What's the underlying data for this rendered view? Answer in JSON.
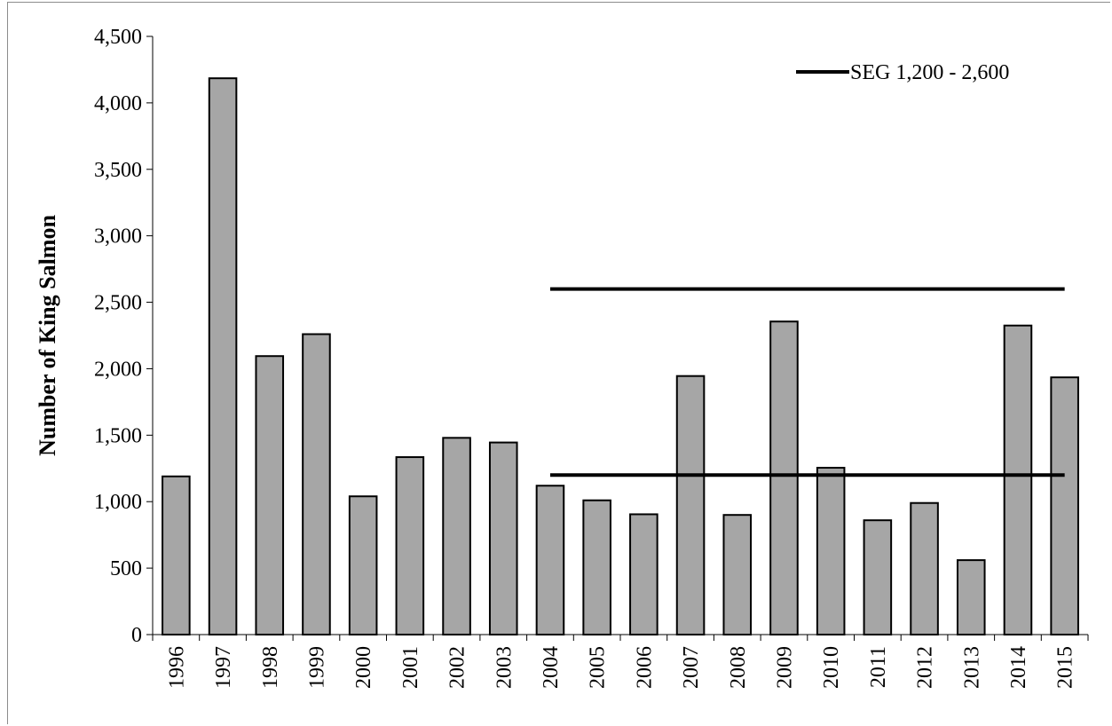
{
  "chart_data": {
    "type": "bar",
    "title": "",
    "xlabel": "",
    "ylabel": "Number of King Salmon",
    "ylim": [
      0,
      4500
    ],
    "yticks": [
      0,
      500,
      1000,
      1500,
      2000,
      2500,
      3000,
      3500,
      4000,
      4500
    ],
    "ytick_labels": [
      "0",
      "500",
      "1,000",
      "1,500",
      "2,000",
      "2,500",
      "3,000",
      "3,500",
      "4,000",
      "4,500"
    ],
    "categories": [
      "1996",
      "1997",
      "1998",
      "1999",
      "2000",
      "2001",
      "2002",
      "2003",
      "2004",
      "2005",
      "2006",
      "2007",
      "2008",
      "2009",
      "2010",
      "2011",
      "2012",
      "2013",
      "2014",
      "2015"
    ],
    "series": [
      {
        "values": [
          1190,
          4185,
          2095,
          2260,
          1040,
          1335,
          1480,
          1445,
          1120,
          1010,
          905,
          1945,
          900,
          2355,
          1255,
          860,
          990,
          560,
          2325,
          1935
        ],
        "color": "#a6a6a6"
      }
    ],
    "goal_range": {
      "label": "SEG 1,200 - 2,600",
      "lower": 1200,
      "upper": 2600,
      "start_category": "2004",
      "end_category": "2015",
      "color": "#000000"
    },
    "legend_position": "top-right",
    "grid": false
  }
}
